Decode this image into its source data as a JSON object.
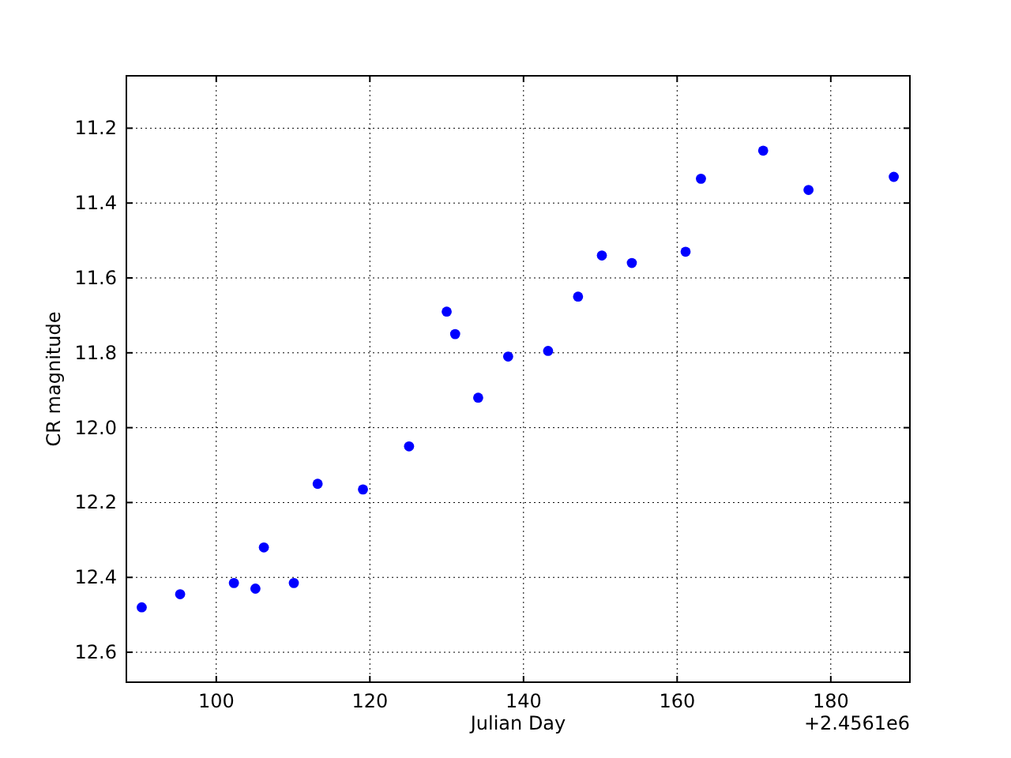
{
  "chart_data": {
    "type": "scatter",
    "xlabel": "Julian Day",
    "ylabel": "CR magnitude",
    "annotations": [
      "+2.4561e6"
    ],
    "x": [
      90.3,
      95.3,
      102.3,
      105.1,
      106.2,
      110.1,
      113.2,
      119.1,
      125.1,
      130.0,
      131.1,
      134.1,
      138.0,
      143.2,
      147.1,
      150.2,
      154.1,
      161.1,
      163.1,
      171.2,
      177.1,
      188.2
    ],
    "series": [
      {
        "color": "#0000ff",
        "values": [
          12.48,
          12.445,
          12.415,
          12.43,
          12.32,
          12.415,
          12.15,
          12.165,
          12.05,
          11.69,
          11.75,
          11.92,
          11.81,
          11.795,
          11.65,
          11.54,
          11.56,
          11.53,
          11.335,
          11.26,
          11.365,
          11.33
        ]
      }
    ],
    "xlim": [
      88.3,
      190.3
    ],
    "ylim": [
      12.68,
      11.06
    ],
    "xticks": [
      100,
      120,
      140,
      160,
      180
    ],
    "yticks": [
      {
        "value": 11.2,
        "label": "11.2"
      },
      {
        "value": 11.4,
        "label": "11.4"
      },
      {
        "value": 11.6,
        "label": "11.6"
      },
      {
        "value": 11.8,
        "label": "11.8"
      },
      {
        "value": 12.0,
        "label": "12.0"
      },
      {
        "value": 12.2,
        "label": "12.2"
      },
      {
        "value": 12.4,
        "label": "12.4"
      },
      {
        "value": 12.6,
        "label": "12.6"
      }
    ],
    "grid": true,
    "marker": "circle"
  }
}
